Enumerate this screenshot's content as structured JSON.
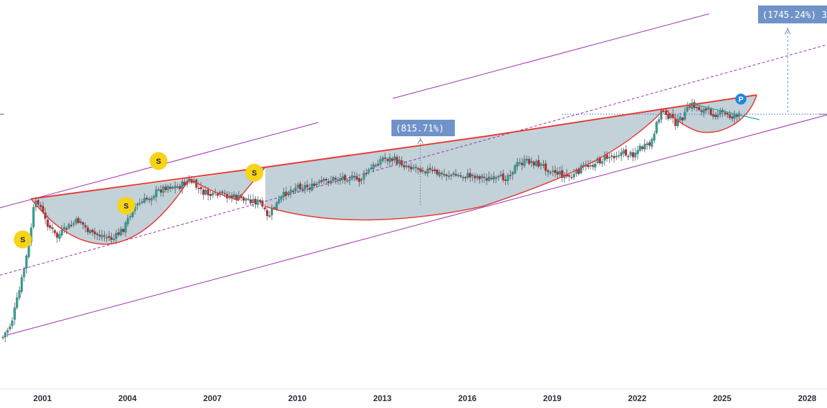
{
  "chart_data": {
    "type": "candlestick",
    "x_axis": {
      "tick_labels": [
        "2001",
        "2004",
        "2007",
        "2010",
        "2013",
        "2016",
        "2019",
        "2022",
        "2025",
        "2028"
      ],
      "range": [
        1999.5,
        2028.7
      ]
    },
    "y_axis": {
      "scale": "log",
      "visible": false
    },
    "grid": false,
    "colors": {
      "up_candle": "#26a69a",
      "down_candle": "#c62828",
      "cup_outline": "#e53935",
      "cup_fill": "#b9ccd3",
      "channel": "#9c27b0",
      "measure": "#5b86c5",
      "label_bg": "#6f93c8",
      "signal_marker": "#f7d31a",
      "p_marker": "#1e88e5"
    },
    "annotations": {
      "measure_1": "(815.71%)",
      "measure_2": "(1745.24%) 3",
      "signal_markers": [
        "S",
        "S",
        "S",
        "S"
      ],
      "p_marker": "P"
    }
  }
}
